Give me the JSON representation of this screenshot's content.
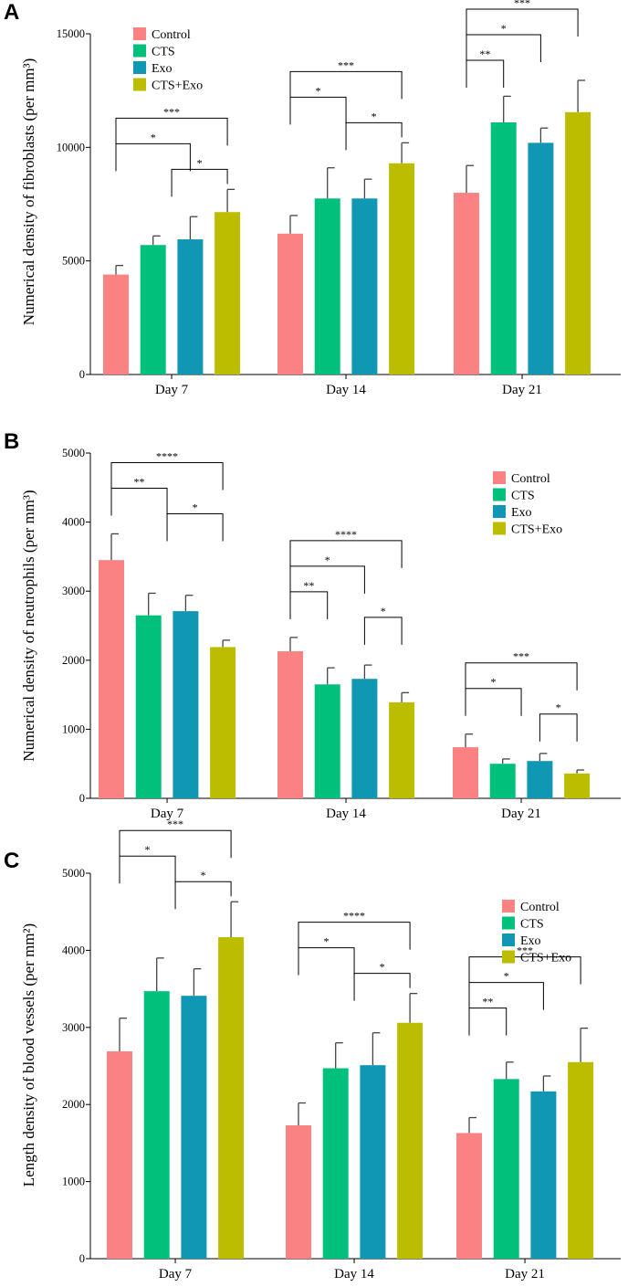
{
  "colors": {
    "Control": "#fa8283",
    "CTS": "#00c07c",
    "Exo": "#1097b3",
    "CTS+Exo": "#bdbd00"
  },
  "chart_data": [
    {
      "panel": "A",
      "type": "bar",
      "ylabel": "Numerical density of fibroblasts (per mm³)",
      "ylim": [
        0,
        15000
      ],
      "yticks": [
        0,
        5000,
        10000,
        15000
      ],
      "categories": [
        "Day 7",
        "Day 14",
        "Day 21"
      ],
      "legend": [
        "Control",
        "CTS",
        "Exo",
        "CTS+Exo"
      ],
      "legend_position": "top-left",
      "series": [
        {
          "name": "Control",
          "values": [
            4400,
            6200,
            8000
          ],
          "errors": [
            400,
            800,
            1200
          ]
        },
        {
          "name": "CTS",
          "values": [
            5700,
            7750,
            11100
          ],
          "errors": [
            400,
            1350,
            1150
          ]
        },
        {
          "name": "Exo",
          "values": [
            5950,
            7750,
            10200
          ],
          "errors": [
            1000,
            850,
            650
          ]
        },
        {
          "name": "CTS+Exo",
          "values": [
            7150,
            9300,
            11550
          ],
          "errors": [
            1000,
            900,
            1400
          ]
        }
      ],
      "significance": [
        {
          "day": 0,
          "from": [
            0
          ],
          "to": [
            3
          ],
          "label": "***"
        },
        {
          "day": 0,
          "from": [
            0
          ],
          "to": [
            2
          ],
          "label": "*"
        },
        {
          "day": 0,
          "from": [
            1,
            2
          ],
          "to": [
            3
          ],
          "label": "*"
        },
        {
          "day": 1,
          "from": [
            0
          ],
          "to": [
            3
          ],
          "label": "***"
        },
        {
          "day": 1,
          "from": [
            0
          ],
          "to": [
            1,
            2
          ],
          "label": "*"
        },
        {
          "day": 1,
          "from": [
            1,
            2
          ],
          "to": [
            3
          ],
          "label": "*"
        },
        {
          "day": 2,
          "from": [
            0
          ],
          "to": [
            3
          ],
          "label": "***"
        },
        {
          "day": 2,
          "from": [
            0
          ],
          "to": [
            2
          ],
          "label": "*"
        },
        {
          "day": 2,
          "from": [
            0
          ],
          "to": [
            1
          ],
          "label": "**"
        }
      ]
    },
    {
      "panel": "B",
      "type": "bar",
      "ylabel": "Numerical density of neutrophils (per mm³)",
      "ylim": [
        0,
        5000
      ],
      "yticks": [
        0,
        1000,
        2000,
        3000,
        4000,
        5000
      ],
      "categories": [
        "Day 7",
        "Day 14",
        "Day 21"
      ],
      "legend": [
        "Control",
        "CTS",
        "Exo",
        "CTS+Exo"
      ],
      "legend_position": "top-right",
      "series": [
        {
          "name": "Control",
          "values": [
            3450,
            2130,
            740
          ],
          "errors": [
            380,
            200,
            190
          ]
        },
        {
          "name": "CTS",
          "values": [
            2650,
            1650,
            500
          ],
          "errors": [
            320,
            240,
            70
          ]
        },
        {
          "name": "Exo",
          "values": [
            2710,
            1730,
            540
          ],
          "errors": [
            230,
            200,
            110
          ]
        },
        {
          "name": "CTS+Exo",
          "values": [
            2190,
            1390,
            360
          ],
          "errors": [
            100,
            140,
            50
          ]
        }
      ],
      "significance": [
        {
          "day": 0,
          "from": [
            0
          ],
          "to": [
            3
          ],
          "label": "****"
        },
        {
          "day": 0,
          "from": [
            0
          ],
          "to": [
            1,
            2
          ],
          "label": "**"
        },
        {
          "day": 0,
          "from": [
            1,
            2
          ],
          "to": [
            3
          ],
          "label": "*"
        },
        {
          "day": 1,
          "from": [
            0
          ],
          "to": [
            3
          ],
          "label": "****"
        },
        {
          "day": 1,
          "from": [
            0
          ],
          "to": [
            2
          ],
          "label": "*"
        },
        {
          "day": 1,
          "from": [
            0
          ],
          "to": [
            1
          ],
          "label": "**"
        },
        {
          "day": 1,
          "from": [
            2
          ],
          "to": [
            3
          ],
          "label": "*"
        },
        {
          "day": 2,
          "from": [
            0
          ],
          "to": [
            3
          ],
          "label": "***"
        },
        {
          "day": 2,
          "from": [
            0
          ],
          "to": [
            1,
            2
          ],
          "label": "*"
        },
        {
          "day": 2,
          "from": [
            2
          ],
          "to": [
            3
          ],
          "label": "*"
        }
      ]
    },
    {
      "panel": "C",
      "type": "bar",
      "ylabel": "Length density of blood vessels (per mm²)",
      "ylim": [
        0,
        5000
      ],
      "yticks": [
        0,
        1000,
        2000,
        3000,
        4000,
        5000
      ],
      "categories": [
        "Day 7",
        "Day 14",
        "Day 21"
      ],
      "legend": [
        "Control",
        "CTS",
        "Exo",
        "CTS+Exo"
      ],
      "legend_position": "top-right",
      "series": [
        {
          "name": "Control",
          "values": [
            2690,
            1730,
            1630
          ],
          "errors": [
            430,
            290,
            200
          ]
        },
        {
          "name": "CTS",
          "values": [
            3470,
            2470,
            2330
          ],
          "errors": [
            430,
            330,
            220
          ]
        },
        {
          "name": "Exo",
          "values": [
            3410,
            2510,
            2170
          ],
          "errors": [
            350,
            420,
            200
          ]
        },
        {
          "name": "CTS+Exo",
          "values": [
            4170,
            3060,
            2550
          ],
          "errors": [
            460,
            380,
            440
          ]
        }
      ],
      "significance": [
        {
          "day": 0,
          "from": [
            0
          ],
          "to": [
            3
          ],
          "label": "***"
        },
        {
          "day": 0,
          "from": [
            0
          ],
          "to": [
            1,
            2
          ],
          "label": "*"
        },
        {
          "day": 0,
          "from": [
            1,
            2
          ],
          "to": [
            3
          ],
          "label": "*"
        },
        {
          "day": 1,
          "from": [
            0
          ],
          "to": [
            3
          ],
          "label": "****"
        },
        {
          "day": 1,
          "from": [
            0
          ],
          "to": [
            1,
            2
          ],
          "label": "*"
        },
        {
          "day": 1,
          "from": [
            1,
            2
          ],
          "to": [
            3
          ],
          "label": "*"
        },
        {
          "day": 2,
          "from": [
            0
          ],
          "to": [
            3
          ],
          "label": "***"
        },
        {
          "day": 2,
          "from": [
            0
          ],
          "to": [
            2
          ],
          "label": "*"
        },
        {
          "day": 2,
          "from": [
            0
          ],
          "to": [
            1
          ],
          "label": "**"
        }
      ]
    }
  ]
}
